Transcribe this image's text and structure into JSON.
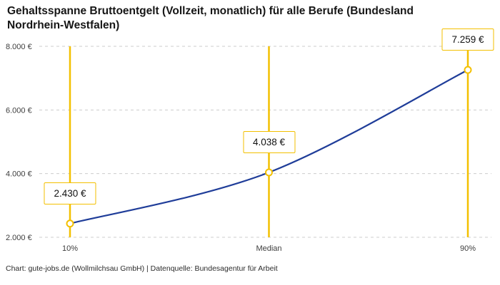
{
  "header": {
    "title": "Gehaltsspanne Bruttoentgelt (Vollzeit, monatlich) für alle Berufe (Bundesland Nordrhein-Westfalen)"
  },
  "footer": {
    "credit": "Chart: gute-jobs.de (Wollmilchsau GmbH) | Datenquelle: Bundesagentur für Arbeit"
  },
  "colors": {
    "accent": "#f3c000",
    "line": "#1f3d99",
    "grid": "#cccccc",
    "axis_text": "#3d3d3d",
    "marker_fill": "#ffffff"
  },
  "chart_data": {
    "type": "line",
    "title": "Gehaltsspanne Bruttoentgelt (Vollzeit, monatlich) für alle Berufe (Bundesland Nordrhein-Westfalen)",
    "categories": [
      "10%",
      "Median",
      "90%"
    ],
    "values": [
      2430,
      4038,
      7259
    ],
    "point_labels": [
      "2.430 €",
      "4.038 €",
      "7.259 €"
    ],
    "y_ticks": [
      {
        "value": 2000,
        "label": "2.000 €"
      },
      {
        "value": 4000,
        "label": "4.000 €"
      },
      {
        "value": 6000,
        "label": "6.000 €"
      },
      {
        "value": 8000,
        "label": "8.000 €"
      }
    ],
    "ylim": [
      2000,
      8000
    ],
    "xlabel": "",
    "ylabel": "",
    "grid": "horizontal-dashed",
    "legend": "none",
    "highlight_lines": "vertical line at each category",
    "source": "Chart: gute-jobs.de (Wollmilchsau GmbH) | Datenquelle: Bundesagentur für Arbeit"
  }
}
